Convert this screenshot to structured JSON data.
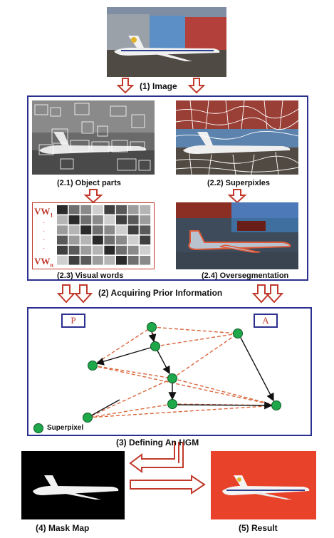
{
  "image_section": {
    "caption": "(1) Image"
  },
  "prior": {
    "caption": "(2) Acquiring Prior Information",
    "object_parts": "(2.1) Object parts",
    "superpixels": "(2.2) Superpixles",
    "visual_words": "(2.3) Visual words",
    "oversegmentation": "(2.4) Oversegmentation",
    "vw_top": "VW",
    "vw_top_sub": "1",
    "vw_bottom": "VW",
    "vw_bottom_sub": "n"
  },
  "hgm": {
    "caption": "(3) Defining An HGM",
    "tag_p": "P",
    "tag_a": "A",
    "legend": "Superpixel"
  },
  "mask": {
    "caption": "(4) Mask Map"
  },
  "result": {
    "caption": "(5) Result"
  },
  "colors": {
    "panel_border": "#2b2f8f",
    "arrow": "#c0392b",
    "node": "#1fa84a",
    "dashed_edge": "#d9663b",
    "result_bg": "#e8432a"
  }
}
